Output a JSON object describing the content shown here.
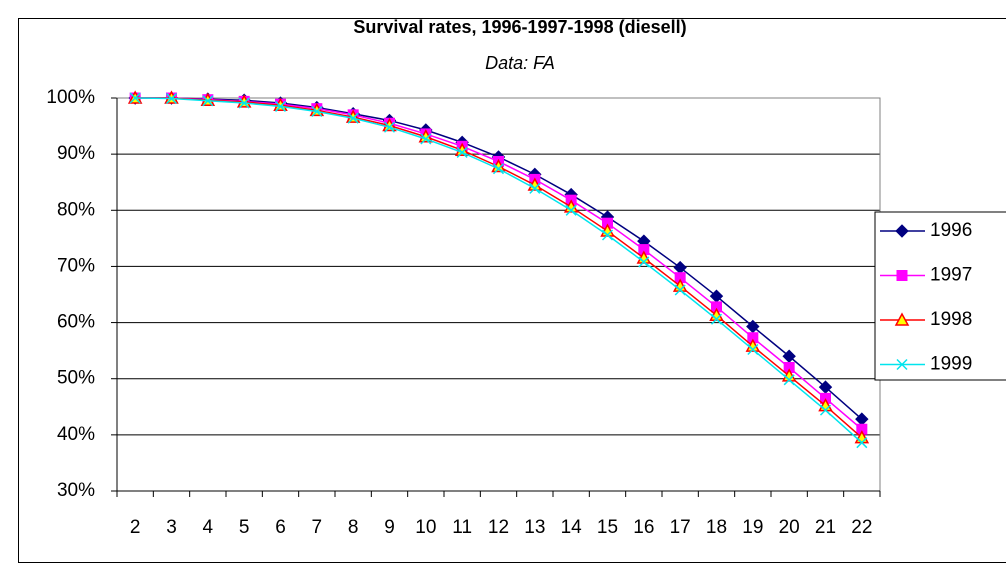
{
  "chart_data": {
    "type": "line",
    "title": "Survival rates, 1996-1997-1998 (diesell)",
    "subtitle": "Data: FA",
    "categories": [
      "2",
      "3",
      "4",
      "5",
      "6",
      "7",
      "8",
      "9",
      "10",
      "11",
      "12",
      "13",
      "14",
      "15",
      "16",
      "17",
      "18",
      "19",
      "20",
      "21",
      "22"
    ],
    "series": [
      {
        "name": "1996",
        "color": "#000080",
        "marker": "diamond",
        "values": [
          100,
          100,
          99.8,
          99.6,
          99.1,
          98.3,
          97.2,
          96.0,
          94.3,
          92.1,
          89.5,
          86.4,
          82.8,
          78.8,
          74.5,
          69.8,
          64.7,
          59.3,
          54.0,
          48.5,
          42.8
        ]
      },
      {
        "name": "1997",
        "color": "#ff00ff",
        "marker": "square",
        "values": [
          100,
          100,
          99.7,
          99.4,
          98.9,
          98.1,
          97.0,
          95.5,
          93.6,
          91.4,
          88.7,
          85.5,
          81.8,
          77.7,
          73.0,
          68.0,
          62.8,
          57.3,
          52.0,
          46.5,
          41.0
        ]
      },
      {
        "name": "1998",
        "color": "#ff0000",
        "marker": "triangle",
        "values": [
          100,
          100,
          99.6,
          99.3,
          98.7,
          97.8,
          96.6,
          95.1,
          93.1,
          90.7,
          87.8,
          84.5,
          80.6,
          76.3,
          71.5,
          66.5,
          61.3,
          55.8,
          50.5,
          45.2,
          39.5
        ]
      },
      {
        "name": "1999",
        "color": "#00e5ee",
        "marker": "x",
        "values": [
          100,
          99.9,
          99.5,
          99.1,
          98.5,
          97.6,
          96.4,
          94.8,
          92.7,
          90.3,
          87.4,
          83.9,
          80.0,
          75.6,
          70.8,
          65.8,
          60.6,
          55.2,
          49.8,
          44.4,
          38.6
        ]
      }
    ],
    "ylim": [
      30,
      100
    ],
    "yticks": [
      {
        "value": 30,
        "label": "30%"
      },
      {
        "value": 40,
        "label": "40%"
      },
      {
        "value": 50,
        "label": "50%"
      },
      {
        "value": 60,
        "label": "60%"
      },
      {
        "value": 70,
        "label": "70%"
      },
      {
        "value": 80,
        "label": "80%"
      },
      {
        "value": 90,
        "label": "90%"
      },
      {
        "value": 100,
        "label": "100%"
      }
    ],
    "grid": true,
    "legend": "right"
  }
}
